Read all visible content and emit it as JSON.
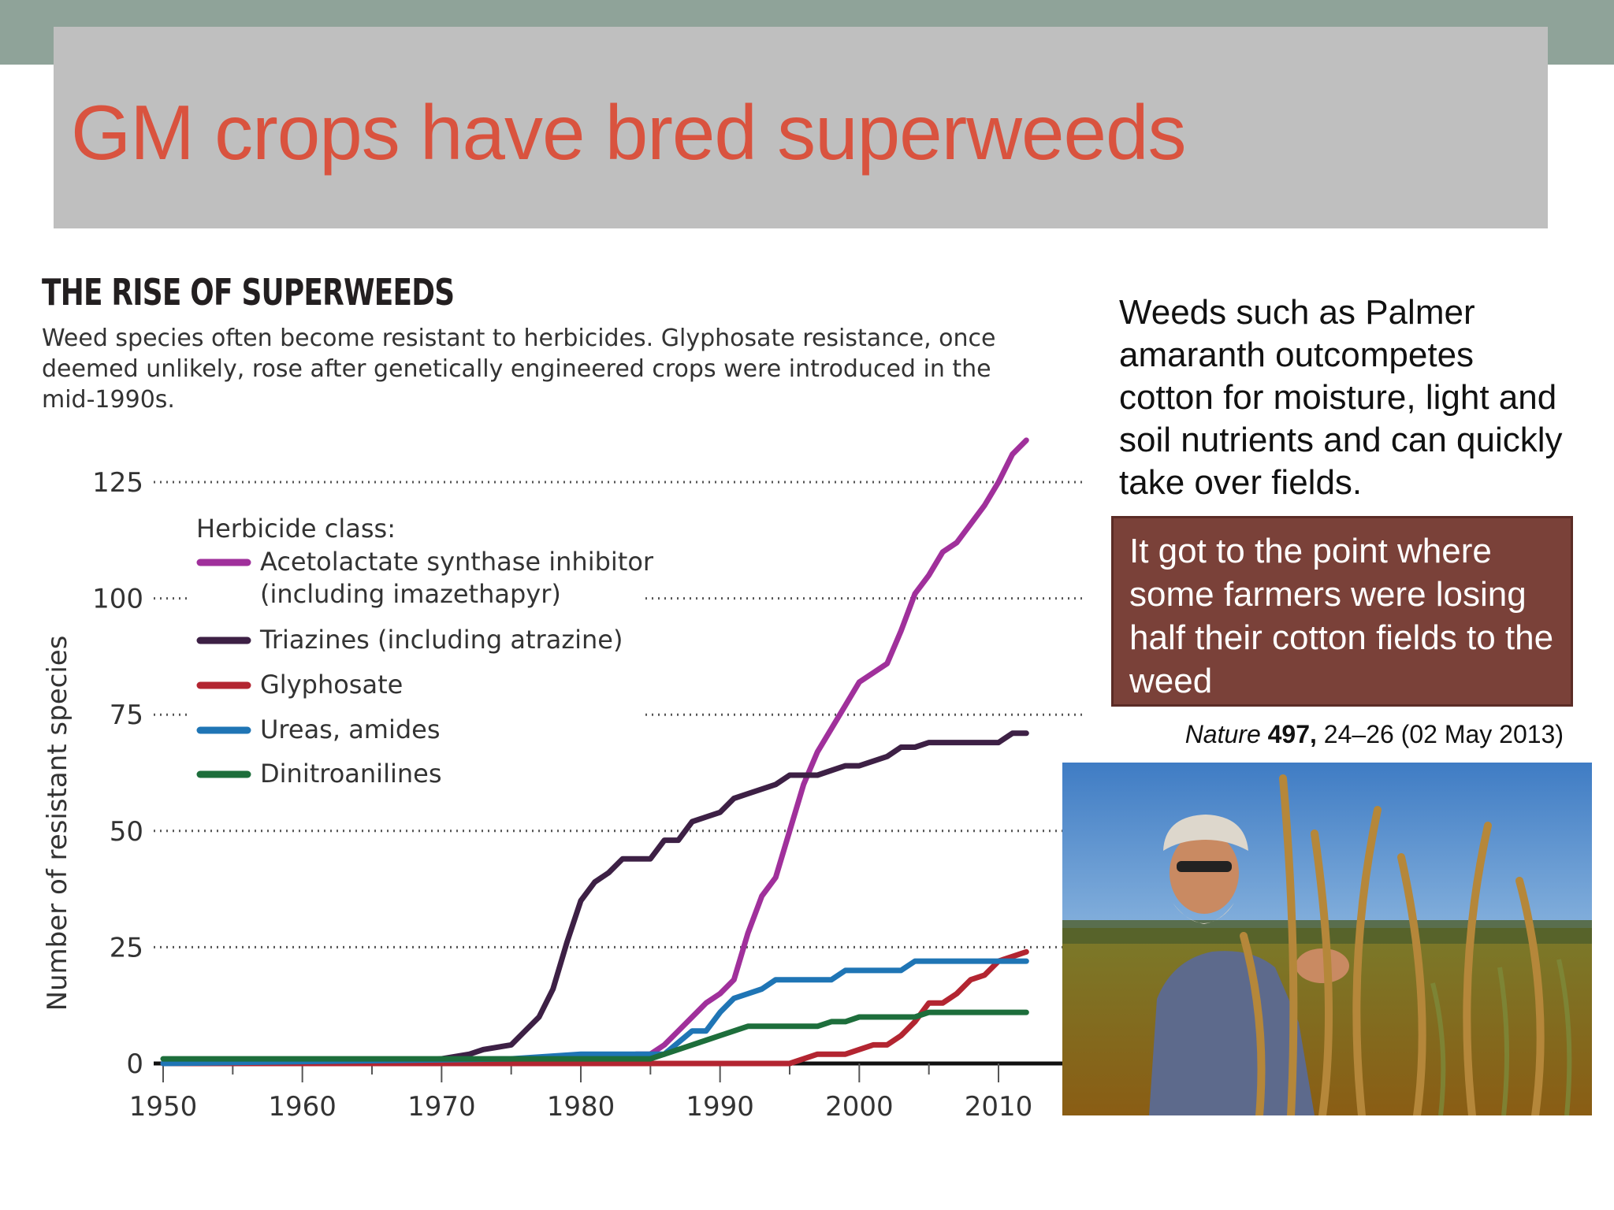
{
  "slide": {
    "title": "GM crops have bred superweeds",
    "side_text": "Weeds such as Palmer amaranth outcompetes cotton for moisture, light and soil nutrients and can quickly take over fields.",
    "quote": "It got to the point where some farmers were losing half their cotton fields to the weed",
    "citation": {
      "journal": "Nature",
      "volume": "497,",
      "pages_date": " 24–26 (02 May 2013)"
    },
    "photo": {
      "subject": "farmer holding Palmer amaranth weed in a field"
    }
  },
  "chart_data": {
    "type": "line",
    "title": "THE RISE OF SUPERWEEDS",
    "subtitle": "Weed species often become resistant to herbicides. Glyphosate resistance, once deemed unlikely, rose after genetically engineered crops were introduced in the mid-1990s.",
    "xlabel": "",
    "ylabel": "Number of resistant species",
    "xlim": [
      1950,
      2012
    ],
    "ylim": [
      0,
      125
    ],
    "xticks": [
      1950,
      1960,
      1970,
      1980,
      1990,
      2000,
      2010
    ],
    "yticks": [
      0,
      25,
      50,
      75,
      100,
      125
    ],
    "grid": "dotted horizontal",
    "legend_title": "Herbicide class:",
    "series": [
      {
        "name": "Acetolactate synthase inhibitor",
        "name2": "(including imazethapyr)",
        "color": "#a0309b",
        "x": [
          1950,
          1960,
          1970,
          1975,
          1980,
          1982,
          1984,
          1985,
          1986,
          1987,
          1988,
          1989,
          1990,
          1991,
          1992,
          1993,
          1994,
          1995,
          1996,
          1997,
          1998,
          1999,
          2000,
          2001,
          2002,
          2003,
          2004,
          2005,
          2006,
          2007,
          2008,
          2009,
          2010,
          2011,
          2012
        ],
        "y": [
          0,
          0,
          0,
          0,
          0,
          1,
          2,
          2,
          4,
          7,
          10,
          13,
          15,
          18,
          28,
          36,
          40,
          50,
          60,
          67,
          72,
          77,
          82,
          84,
          86,
          93,
          101,
          105,
          110,
          112,
          116,
          120,
          125,
          131,
          134
        ]
      },
      {
        "name": "Triazines (including atrazine)",
        "color": "#3d2045",
        "x": [
          1950,
          1958,
          1965,
          1968,
          1970,
          1972,
          1973,
          1975,
          1976,
          1977,
          1978,
          1979,
          1980,
          1981,
          1982,
          1983,
          1984,
          1985,
          1986,
          1987,
          1988,
          1989,
          1990,
          1991,
          1992,
          1993,
          1994,
          1995,
          1996,
          1997,
          1998,
          1999,
          2000,
          2001,
          2002,
          2003,
          2004,
          2005,
          2006,
          2007,
          2008,
          2009,
          2010,
          2011,
          2012
        ],
        "y": [
          0,
          0,
          0,
          0.5,
          1,
          2,
          3,
          4,
          7,
          10,
          16,
          26,
          35,
          39,
          41,
          44,
          44,
          44,
          48,
          48,
          52,
          53,
          54,
          57,
          58,
          59,
          60,
          62,
          62,
          62,
          63,
          64,
          64,
          65,
          66,
          68,
          68,
          69,
          69,
          69,
          69,
          69,
          69,
          71,
          71
        ]
      },
      {
        "name": "Glyphosate",
        "color": "#b32531",
        "x": [
          1950,
          1995,
          1996,
          1997,
          1998,
          1999,
          2000,
          2001,
          2002,
          2003,
          2004,
          2005,
          2006,
          2007,
          2008,
          2009,
          2010,
          2011,
          2012
        ],
        "y": [
          0,
          0,
          1,
          2,
          2,
          2,
          3,
          4,
          4,
          6,
          9,
          13,
          13,
          15,
          18,
          19,
          22,
          23,
          24
        ]
      },
      {
        "name": "Ureas, amides",
        "color": "#1f75b5",
        "x": [
          1950,
          1975,
          1980,
          1983,
          1985,
          1986,
          1988,
          1989,
          1990,
          1991,
          1992,
          1993,
          1994,
          1995,
          1996,
          1997,
          1998,
          1999,
          2000,
          2001,
          2002,
          2003,
          2004,
          2005,
          2006,
          2007,
          2008,
          2009,
          2010,
          2011,
          2012
        ],
        "y": [
          0,
          1,
          2,
          2,
          2,
          2,
          7,
          7,
          11,
          14,
          15,
          16,
          18,
          18,
          18,
          18,
          18,
          20,
          20,
          20,
          20,
          20,
          22,
          22,
          22,
          22,
          22,
          22,
          22,
          22,
          22
        ]
      },
      {
        "name": "Dinitroanilines",
        "color": "#1d6e3b",
        "x": [
          1950,
          1972,
          1980,
          1985,
          1986,
          1988,
          1989,
          1990,
          1991,
          1992,
          1993,
          1994,
          1995,
          1996,
          1997,
          1998,
          1999,
          2000,
          2001,
          2002,
          2003,
          2004,
          2005,
          2006,
          2007,
          2008,
          2009,
          2010,
          2011,
          2012
        ],
        "y": [
          1,
          1,
          1,
          1,
          2,
          4,
          5,
          6,
          7,
          8,
          8,
          8,
          8,
          8,
          8,
          9,
          9,
          10,
          10,
          10,
          10,
          10,
          11,
          11,
          11,
          11,
          11,
          11,
          11,
          11
        ]
      }
    ]
  }
}
